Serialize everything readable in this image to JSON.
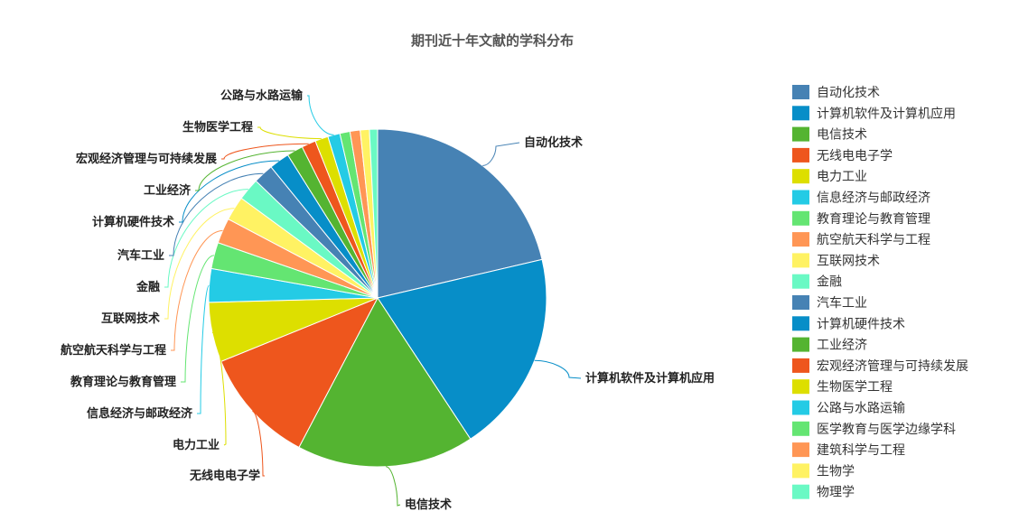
{
  "chart_data": {
    "type": "pie",
    "title": "期刊近十年文献的学科分布",
    "legend_position": "right",
    "slices": [
      {
        "label": "自动化技术",
        "value": 22.0,
        "color": "#4682b4"
      },
      {
        "label": "计算机软件及计算机应用",
        "value": 20.0,
        "color": "#078ec8"
      },
      {
        "label": "电信技术",
        "value": 17.5,
        "color": "#54b431"
      },
      {
        "label": "无线电电子学",
        "value": 11.5,
        "color": "#ee561d"
      },
      {
        "label": "电力工业",
        "value": 5.9,
        "color": "#dddf00"
      },
      {
        "label": "信息经济与邮政经济",
        "value": 3.3,
        "color": "#24cbe5"
      },
      {
        "label": "教育理论与教育管理",
        "value": 2.6,
        "color": "#64e572"
      },
      {
        "label": "航空航天科学与工程",
        "value": 2.5,
        "color": "#ff9655"
      },
      {
        "label": "互联网技术",
        "value": 2.4,
        "color": "#fff263"
      },
      {
        "label": "金融",
        "value": 2.2,
        "color": "#6af9c4"
      },
      {
        "label": "汽车工业",
        "value": 2.0,
        "color": "#4682b4"
      },
      {
        "label": "计算机硬件技术",
        "value": 2.0,
        "color": "#078ec8"
      },
      {
        "label": "工业经济",
        "value": 1.6,
        "color": "#54b431"
      },
      {
        "label": "宏观经济管理与可持续发展",
        "value": 1.4,
        "color": "#ee561d"
      },
      {
        "label": "生物医学工程",
        "value": 1.3,
        "color": "#dddf00"
      },
      {
        "label": "公路与水路运输",
        "value": 1.2,
        "color": "#24cbe5"
      },
      {
        "label": "医学教育与医学边缘学科",
        "value": 1.0,
        "color": "#64e572"
      },
      {
        "label": "建筑科学与工程",
        "value": 1.0,
        "color": "#ff9655"
      },
      {
        "label": "生物学",
        "value": 0.9,
        "color": "#fff263"
      },
      {
        "label": "物理学",
        "value": 0.8,
        "color": "#6af9c4"
      }
    ],
    "callout_labels": [
      "自动化技术",
      "计算机软件及计算机应用",
      "电信技术",
      "无线电电子学",
      "电力工业",
      "信息经济与邮政经济",
      "教育理论与教育管理",
      "航空航天科学与工程",
      "互联网技术",
      "金融",
      "汽车工业",
      "计算机硬件技术",
      "工业经济",
      "宏观经济管理与可持续发展",
      "生物医学工程",
      "公路与水路运输"
    ]
  }
}
